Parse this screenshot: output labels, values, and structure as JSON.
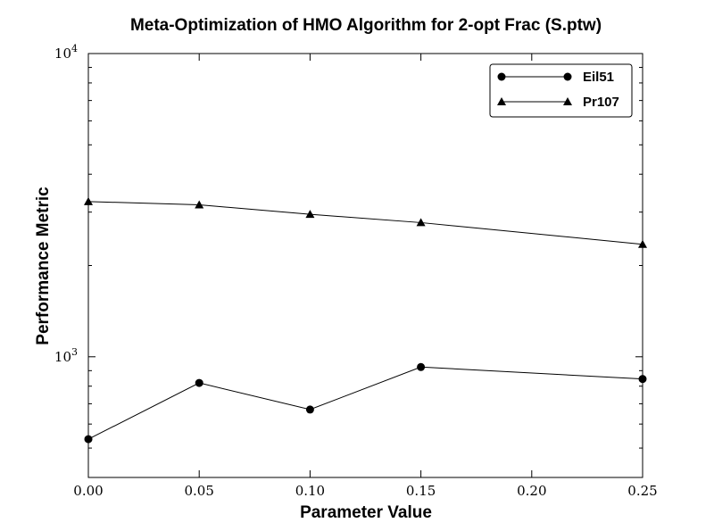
{
  "chart_data": {
    "type": "line",
    "title": "Meta-Optimization of HMO Algorithm for 2-opt Frac (S.ptw)",
    "xlabel": "Parameter Value",
    "ylabel": "Performance Metric",
    "x": [
      0.0,
      0.05,
      0.1,
      0.15,
      0.2,
      0.25
    ],
    "xlim": [
      0.0,
      0.25
    ],
    "ylim": [
      400,
      10000
    ],
    "yscale": "log",
    "x_tick_labels": [
      "0.00",
      "0.05",
      "0.10",
      "0.15",
      "0.20",
      "0.25"
    ],
    "y_tick_labels": [
      {
        "base": "10",
        "exp": "3",
        "value": 1000
      },
      {
        "base": "10",
        "exp": "4",
        "value": 10000
      }
    ],
    "grid": false,
    "legend_position": "top-right",
    "series": [
      {
        "name": "Eil51",
        "marker": "circle",
        "x": [
          0.0,
          0.05,
          0.1,
          0.15,
          0.25
        ],
        "values": [
          535,
          820,
          670,
          925,
          845
        ]
      },
      {
        "name": "Pr107",
        "marker": "triangle",
        "x": [
          0.0,
          0.05,
          0.1,
          0.15,
          0.25
        ],
        "values": [
          3250,
          3170,
          2950,
          2770,
          2350
        ]
      }
    ]
  }
}
